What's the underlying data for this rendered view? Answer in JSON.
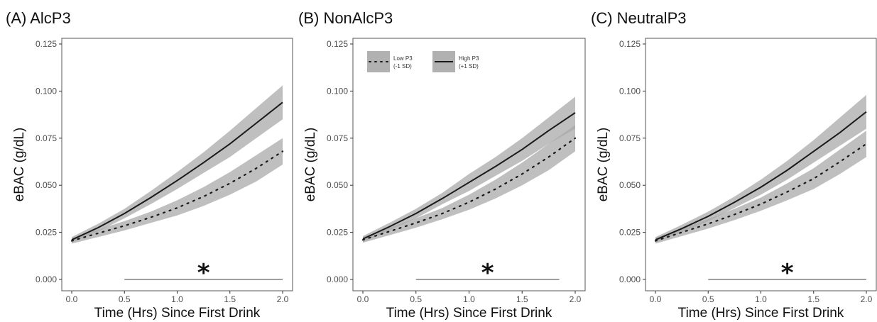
{
  "chart_data": [
    {
      "type": "line",
      "title": "(A) AlcP3",
      "xlabel": "Time (Hrs) Since First Drink",
      "ylabel": "eBAC (g/dL)",
      "xlim": [
        0,
        2
      ],
      "ylim": [
        0,
        0.125
      ],
      "x_ticks": [
        "0.0",
        "0.5",
        "1.0",
        "1.5",
        "2.0"
      ],
      "y_ticks": [
        "0.000",
        "0.025",
        "0.050",
        "0.075",
        "0.100",
        "0.125"
      ],
      "grid": false,
      "x": [
        0,
        0.25,
        0.5,
        0.75,
        1.0,
        1.25,
        1.5,
        1.75,
        2.0
      ],
      "series": [
        {
          "name": "Low P3 (-1 SD)",
          "style": "dotted",
          "values": [
            0.0205,
            0.0245,
            0.0285,
            0.033,
            0.038,
            0.044,
            0.051,
            0.059,
            0.068
          ],
          "lower": [
            0.019,
            0.0225,
            0.026,
            0.03,
            0.034,
            0.039,
            0.045,
            0.052,
            0.061
          ],
          "upper": [
            0.022,
            0.0265,
            0.031,
            0.036,
            0.042,
            0.049,
            0.057,
            0.066,
            0.075
          ]
        },
        {
          "name": "High P3 (+1 SD)",
          "style": "solid",
          "values": [
            0.021,
            0.0275,
            0.035,
            0.0435,
            0.0525,
            0.062,
            0.072,
            0.083,
            0.094
          ],
          "lower": [
            0.0195,
            0.0255,
            0.0325,
            0.04,
            0.048,
            0.0565,
            0.065,
            0.075,
            0.085
          ],
          "upper": [
            0.0225,
            0.0295,
            0.0375,
            0.047,
            0.057,
            0.0675,
            0.079,
            0.091,
            0.103
          ]
        }
      ],
      "significance": {
        "x_start": 0.5,
        "x_end": 2.0,
        "y": 0.0,
        "label": "*"
      }
    },
    {
      "type": "line",
      "title": "(B) NonAlcP3",
      "xlabel": "Time (Hrs) Since First Drink",
      "ylabel": "eBAC (g/dL)",
      "xlim": [
        0,
        2
      ],
      "ylim": [
        0,
        0.125
      ],
      "x_ticks": [
        "0.0",
        "0.5",
        "1.0",
        "1.5",
        "2.0"
      ],
      "y_ticks": [
        "0.000",
        "0.025",
        "0.050",
        "0.075",
        "0.100",
        "0.125"
      ],
      "grid": false,
      "legend": {
        "placement": "top-left",
        "items": [
          {
            "label_line1": "Low P3",
            "label_line2": "(-1 SD)",
            "style": "dotted"
          },
          {
            "label_line1": "High P3",
            "label_line2": "(+1 SD)",
            "style": "solid"
          }
        ]
      },
      "x": [
        0,
        0.25,
        0.5,
        0.75,
        1.0,
        1.25,
        1.5,
        1.75,
        2.0
      ],
      "series": [
        {
          "name": "Low P3 (-1 SD)",
          "style": "dotted",
          "values": [
            0.021,
            0.0255,
            0.03,
            0.035,
            0.041,
            0.048,
            0.056,
            0.065,
            0.075
          ],
          "lower": [
            0.0195,
            0.0235,
            0.0275,
            0.032,
            0.037,
            0.043,
            0.05,
            0.058,
            0.068
          ],
          "upper": [
            0.0225,
            0.0275,
            0.0325,
            0.038,
            0.045,
            0.053,
            0.062,
            0.072,
            0.082
          ]
        },
        {
          "name": "High P3 (+1 SD)",
          "style": "solid",
          "values": [
            0.0215,
            0.028,
            0.035,
            0.043,
            0.0515,
            0.06,
            0.069,
            0.079,
            0.0885
          ],
          "lower": [
            0.02,
            0.026,
            0.0325,
            0.04,
            0.047,
            0.055,
            0.063,
            0.072,
            0.08
          ],
          "upper": [
            0.023,
            0.03,
            0.0375,
            0.046,
            0.056,
            0.065,
            0.075,
            0.086,
            0.097
          ]
        }
      ],
      "significance": {
        "x_start": 0.5,
        "x_end": 1.85,
        "y": 0.0,
        "label": "*"
      }
    },
    {
      "type": "line",
      "title": "(C) NeutralP3",
      "xlabel": "Time (Hrs) Since First Drink",
      "ylabel": "eBAC (g/dL)",
      "xlim": [
        0,
        2
      ],
      "ylim": [
        0,
        0.125
      ],
      "x_ticks": [
        "0.0",
        "0.5",
        "1.0",
        "1.5",
        "2.0"
      ],
      "y_ticks": [
        "0.000",
        "0.025",
        "0.050",
        "0.075",
        "0.100",
        "0.125"
      ],
      "grid": false,
      "x": [
        0,
        0.25,
        0.5,
        0.75,
        1.0,
        1.25,
        1.5,
        1.75,
        2.0
      ],
      "series": [
        {
          "name": "Low P3 (-1 SD)",
          "style": "dotted",
          "values": [
            0.0205,
            0.025,
            0.0295,
            0.0345,
            0.04,
            0.0465,
            0.0535,
            0.0625,
            0.072
          ],
          "lower": [
            0.019,
            0.023,
            0.027,
            0.0315,
            0.0365,
            0.042,
            0.048,
            0.056,
            0.065
          ],
          "upper": [
            0.022,
            0.027,
            0.032,
            0.0375,
            0.0435,
            0.051,
            0.059,
            0.069,
            0.079
          ]
        },
        {
          "name": "High P3 (+1 SD)",
          "style": "solid",
          "values": [
            0.021,
            0.027,
            0.0335,
            0.041,
            0.049,
            0.058,
            0.068,
            0.078,
            0.089
          ],
          "lower": [
            0.0195,
            0.025,
            0.031,
            0.038,
            0.045,
            0.053,
            0.062,
            0.071,
            0.08
          ],
          "upper": [
            0.0225,
            0.029,
            0.036,
            0.044,
            0.053,
            0.063,
            0.074,
            0.086,
            0.098
          ]
        }
      ],
      "significance": {
        "x_start": 0.5,
        "x_end": 2.0,
        "y": 0.0,
        "label": "*"
      }
    }
  ],
  "colors": {
    "band": "#a9a9a9",
    "line": "#1a1a1a",
    "frame": "#555555",
    "significance_line": "#666666"
  }
}
